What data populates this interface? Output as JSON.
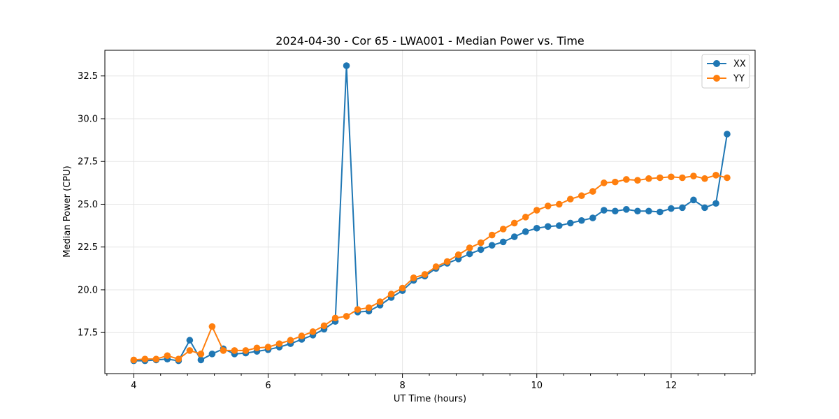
{
  "chart_data": {
    "type": "line",
    "title": "2024-04-30 - Cor 65 - LWA001 - Median Power vs. Time",
    "xlabel": "UT Time (hours)",
    "ylabel": "Median Power (CPU)",
    "xlim": [
      3.57,
      13.25
    ],
    "ylim": [
      15.1,
      34.0
    ],
    "xticks": [
      4,
      6,
      8,
      10,
      12
    ],
    "xtick_labels": [
      "4",
      "6",
      "8",
      "10",
      "12"
    ],
    "yticks": [
      17.5,
      20.0,
      22.5,
      25.0,
      27.5,
      30.0,
      32.5
    ],
    "ytick_labels": [
      "17.5",
      "20.0",
      "22.5",
      "25.0",
      "27.5",
      "30.0",
      "32.5"
    ],
    "grid": true,
    "legend_position": "top-right",
    "x": [
      4.0,
      4.1667,
      4.3333,
      4.5,
      4.6667,
      4.8333,
      5.0,
      5.1667,
      5.3333,
      5.5,
      5.6667,
      5.8333,
      6.0,
      6.1667,
      6.3333,
      6.5,
      6.6667,
      6.8333,
      7.0,
      7.1667,
      7.3333,
      7.5,
      7.6667,
      7.8333,
      8.0,
      8.1667,
      8.3333,
      8.5,
      8.6667,
      8.8333,
      9.0,
      9.1667,
      9.3333,
      9.5,
      9.6667,
      9.8333,
      10.0,
      10.1667,
      10.3333,
      10.5,
      10.6667,
      10.8333,
      11.0,
      11.1667,
      11.3333,
      11.5,
      11.6667,
      11.8333,
      12.0,
      12.1667,
      12.3333,
      12.5,
      12.6667,
      12.8333
    ],
    "series": [
      {
        "name": "XX",
        "color": "#1f77b4",
        "values": [
          15.85,
          15.85,
          15.9,
          15.95,
          15.85,
          17.05,
          15.9,
          16.25,
          16.55,
          16.25,
          16.3,
          16.4,
          16.5,
          16.65,
          16.85,
          17.1,
          17.35,
          17.7,
          18.15,
          33.1,
          18.7,
          18.75,
          19.1,
          19.55,
          19.95,
          20.55,
          20.8,
          21.25,
          21.55,
          21.8,
          22.1,
          22.35,
          22.6,
          22.8,
          23.1,
          23.4,
          23.6,
          23.7,
          23.75,
          23.9,
          24.05,
          24.2,
          24.65,
          24.6,
          24.7,
          24.6,
          24.6,
          24.55,
          24.75,
          24.8,
          25.25,
          24.8,
          25.05,
          29.1
        ]
      },
      {
        "name": "YY",
        "color": "#ff7f0e",
        "values": [
          15.9,
          15.95,
          15.95,
          16.15,
          15.95,
          16.45,
          16.25,
          17.85,
          16.45,
          16.45,
          16.45,
          16.6,
          16.65,
          16.85,
          17.05,
          17.3,
          17.55,
          17.9,
          18.35,
          18.45,
          18.85,
          18.95,
          19.3,
          19.75,
          20.1,
          20.7,
          20.9,
          21.35,
          21.65,
          22.05,
          22.45,
          22.75,
          23.2,
          23.55,
          23.9,
          24.25,
          24.65,
          24.9,
          25.0,
          25.3,
          25.5,
          25.75,
          26.25,
          26.3,
          26.45,
          26.4,
          26.5,
          26.55,
          26.6,
          26.55,
          26.65,
          26.5,
          26.7,
          26.55
        ]
      }
    ]
  }
}
